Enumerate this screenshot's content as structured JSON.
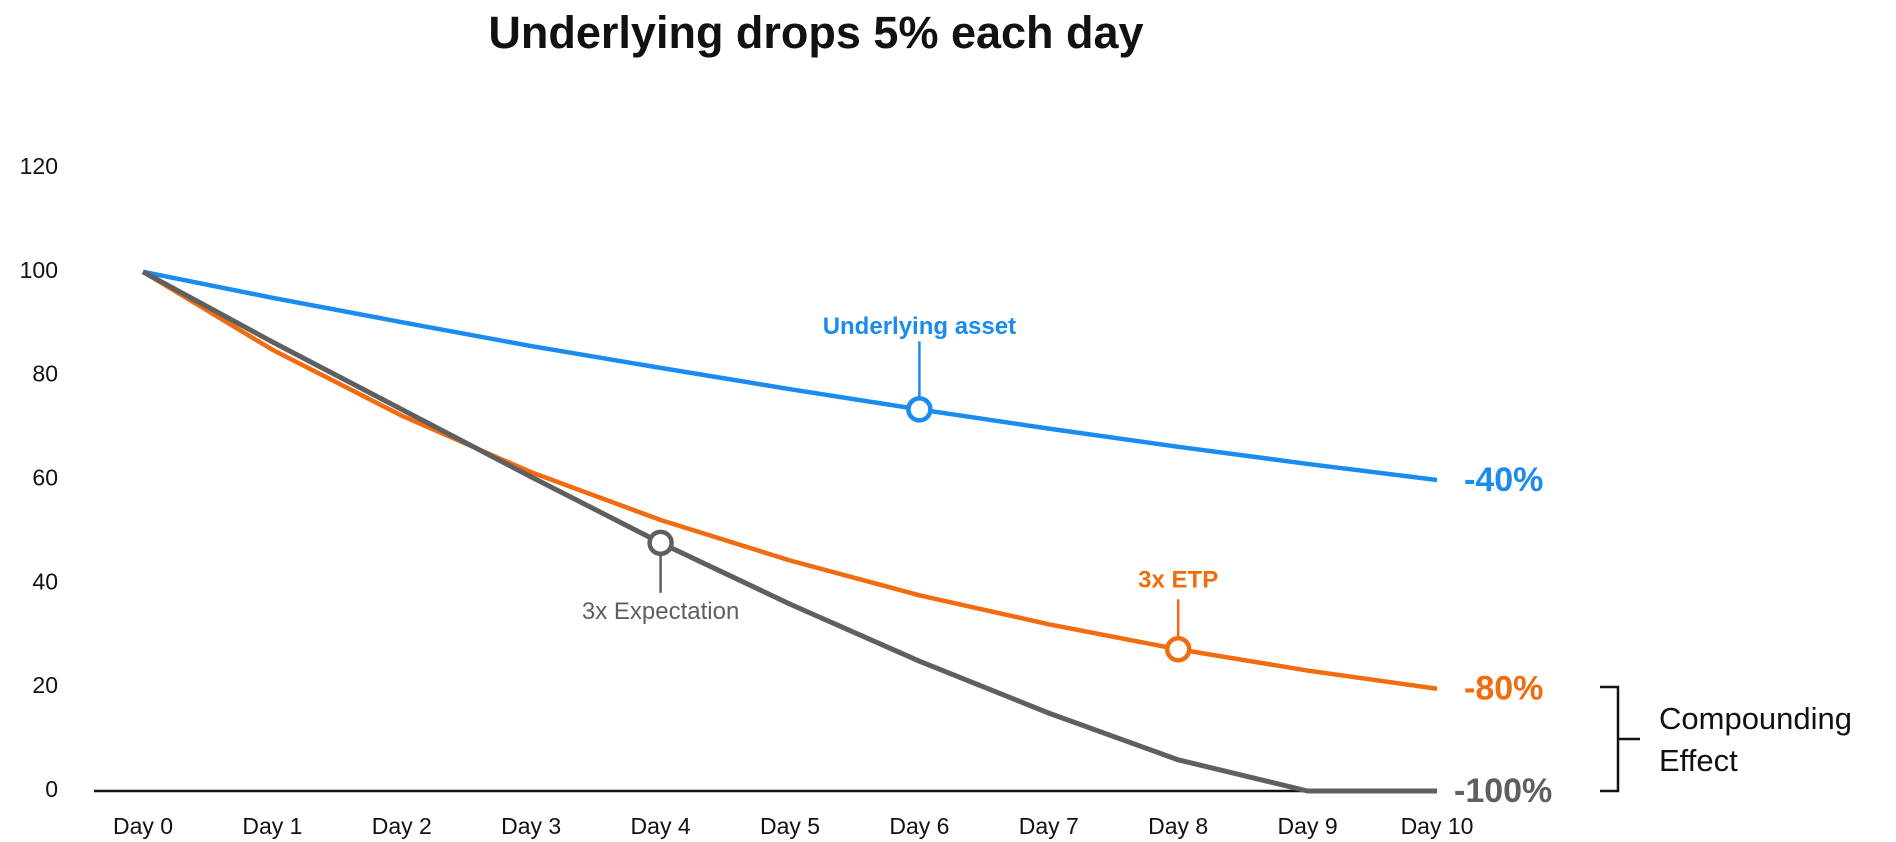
{
  "chart_data": {
    "type": "line",
    "title": "Underlying drops 5% each day",
    "categories": [
      "Day 0",
      "Day 1",
      "Day 2",
      "Day 3",
      "Day 4",
      "Day 5",
      "Day 6",
      "Day 7",
      "Day 8",
      "Day 9",
      "Day 10"
    ],
    "series": [
      {
        "name": "Underlying asset",
        "color": "#1a8cf0",
        "values": [
          100,
          95,
          90.3,
          85.7,
          81.5,
          77.4,
          73.5,
          69.8,
          66.3,
          63,
          59.9
        ],
        "change_label": "-40%"
      },
      {
        "name": "3x ETP",
        "color": "#f26b0f",
        "values": [
          100,
          85,
          72.3,
          61.4,
          52.2,
          44.4,
          37.7,
          32.1,
          27.3,
          23.2,
          19.7
        ],
        "change_label": "-80%"
      },
      {
        "name": "3x Expectation",
        "color": "#5f5f5f",
        "values": [
          100,
          86.5,
          73.5,
          60.5,
          47.8,
          36,
          25,
          15,
          6,
          0,
          0
        ],
        "change_label": "-100%"
      }
    ],
    "ylim": [
      0,
      120
    ],
    "yticks": [
      0,
      20,
      40,
      60,
      80,
      100,
      120
    ],
    "grid": false,
    "annotation": "Compounding Effect"
  }
}
